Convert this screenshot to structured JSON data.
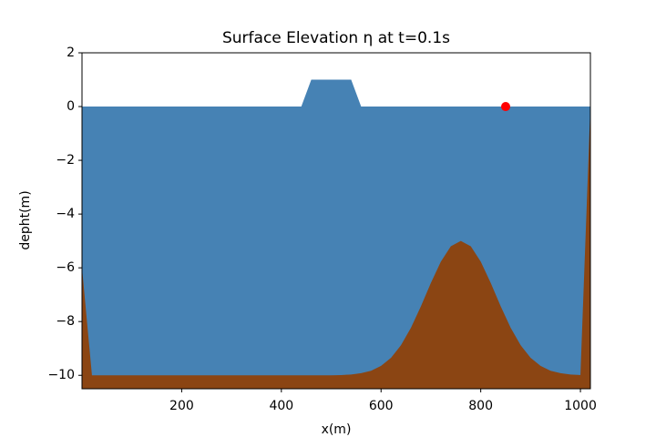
{
  "chart_data": {
    "type": "area",
    "title": "Surface Elevation η at t=0.1s",
    "x_label": "x(m)",
    "y_label": "depht(m)",
    "x": [
      0,
      20,
      40,
      60,
      80,
      100,
      120,
      140,
      160,
      180,
      200,
      220,
      240,
      260,
      280,
      300,
      320,
      340,
      360,
      380,
      400,
      420,
      440,
      460,
      480,
      500,
      520,
      540,
      560,
      580,
      600,
      620,
      640,
      660,
      680,
      700,
      720,
      740,
      760,
      780,
      800,
      820,
      840,
      860,
      880,
      900,
      920,
      940,
      960,
      980,
      1000,
      1020
    ],
    "series": [
      {
        "color": "#4682b4",
        "values": [
          0,
          0,
          0,
          0,
          0,
          0,
          0,
          0,
          0,
          0,
          0,
          0,
          0,
          0,
          0,
          0,
          0,
          0,
          0,
          0,
          0,
          0,
          0,
          1,
          1,
          1,
          1,
          1,
          0,
          0,
          0,
          0,
          0,
          0,
          0,
          0,
          0,
          0,
          0,
          0,
          0,
          0,
          0,
          0,
          0,
          0,
          0,
          0,
          0,
          0,
          0,
          0
        ]
      },
      {
        "color": "#8b4513",
        "values": [
          -6,
          -10,
          -10,
          -10,
          -10,
          -10,
          -10,
          -10,
          -10,
          -10,
          -10,
          -10,
          -10,
          -10,
          -10,
          -10,
          -10,
          -10,
          -10,
          -10,
          -10,
          -10,
          -10,
          -10,
          -10,
          -10,
          -9.99,
          -9.97,
          -9.92,
          -9.83,
          -9.65,
          -9.35,
          -8.88,
          -8.23,
          -7.43,
          -6.56,
          -5.77,
          -5.2,
          -5,
          -5.2,
          -5.77,
          -6.56,
          -7.43,
          -8.23,
          -8.88,
          -9.35,
          -9.65,
          -9.83,
          -9.92,
          -9.97,
          -9.99,
          0
        ]
      }
    ],
    "marker": {
      "x": 850,
      "y": 0,
      "color": "#ff0000"
    },
    "xlim": [
      0,
      1020
    ],
    "ylim": [
      -10.5,
      2
    ],
    "xticks": [
      200,
      400,
      600,
      800,
      1000
    ],
    "yticks": [
      2,
      0,
      {
        "value": -2,
        "label": "−2"
      },
      {
        "value": -4,
        "label": "−4"
      },
      {
        "value": -6,
        "label": "−6"
      },
      {
        "value": -8,
        "label": "−8"
      },
      {
        "value": -10,
        "label": "−10"
      }
    ]
  }
}
